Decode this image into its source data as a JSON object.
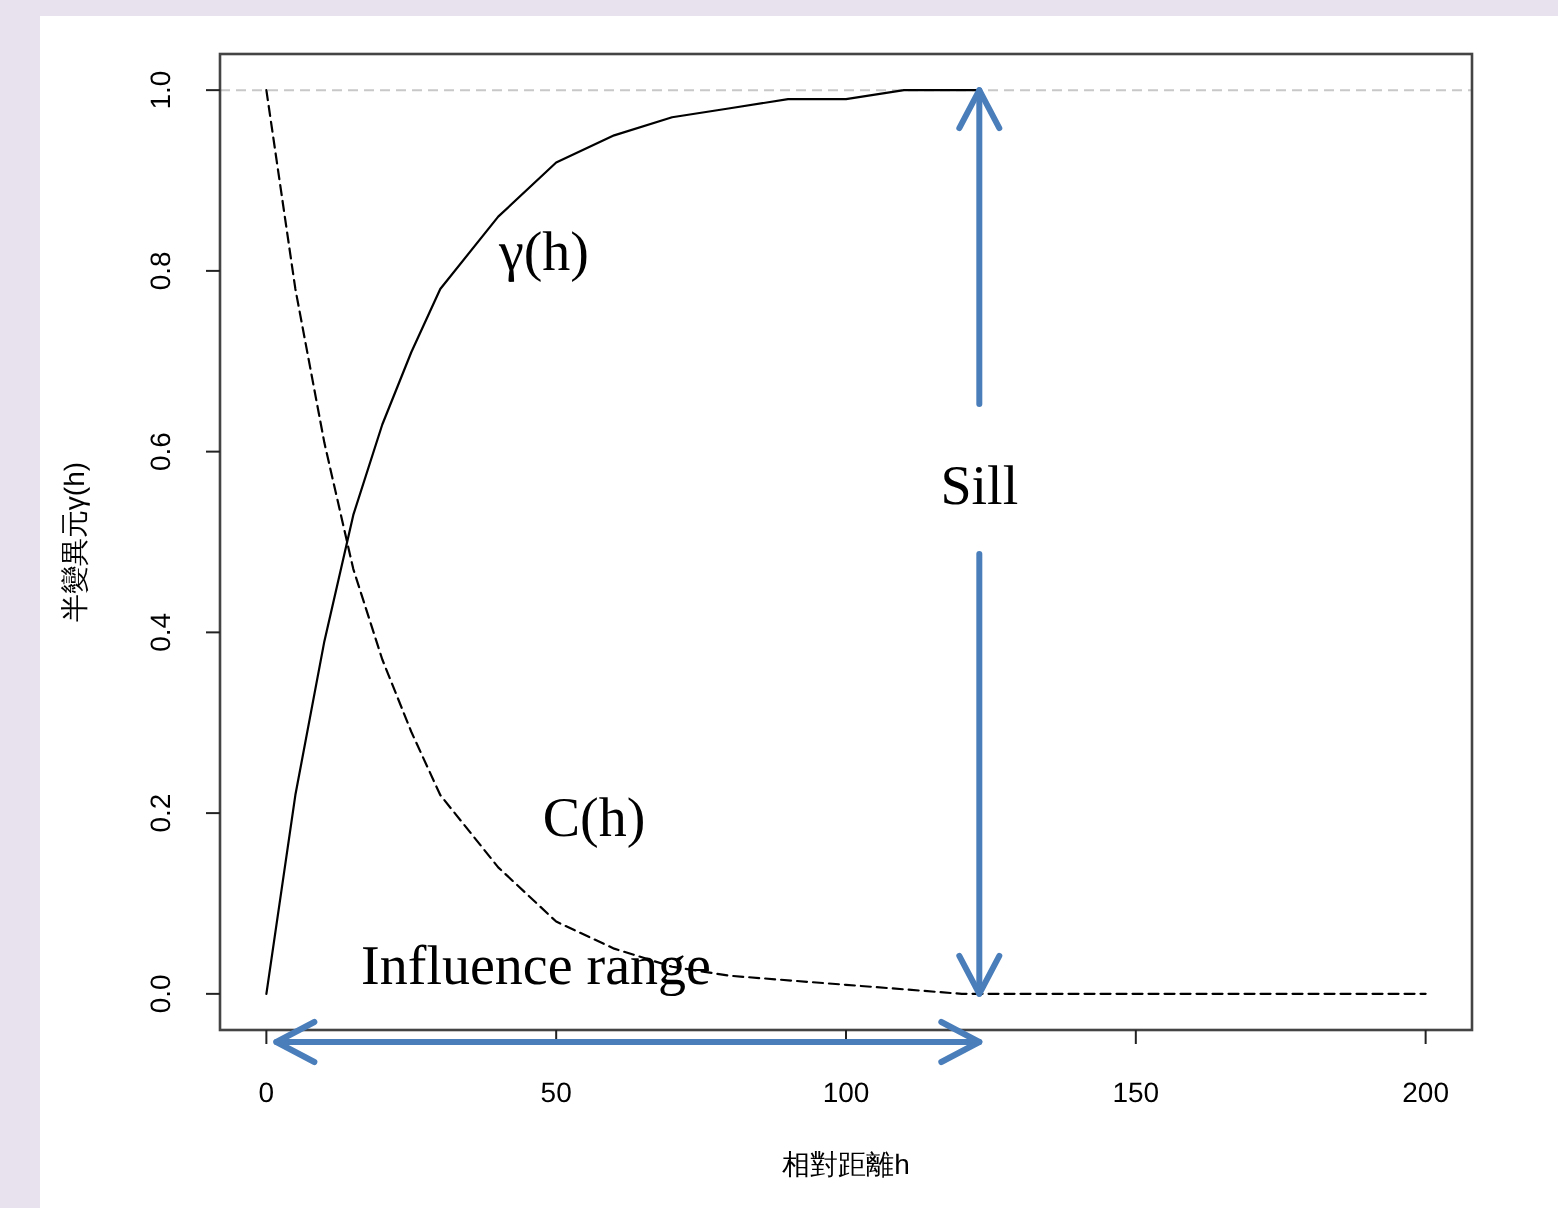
{
  "chart_data": {
    "type": "line",
    "xlabel": "相對距離h",
    "ylabel": "半變異元γ(h)",
    "xlim": [
      -8,
      208
    ],
    "ylim": [
      -0.04,
      1.04
    ],
    "xticks": [
      0,
      50,
      100,
      150,
      200
    ],
    "yticks": [
      {
        "value": 0,
        "label": "0.0"
      },
      {
        "value": 0.2,
        "label": "0.2"
      },
      {
        "value": 0.4,
        "label": "0.4"
      },
      {
        "value": 0.6,
        "label": "0.6"
      },
      {
        "value": 0.8,
        "label": "0.8"
      },
      {
        "value": 1,
        "label": "1.0"
      }
    ],
    "grid": false,
    "series": [
      {
        "name": "γ(h)",
        "color": "#000000",
        "line_style": "solid",
        "x": [
          0,
          5,
          10,
          15,
          20,
          25,
          30,
          40,
          50,
          60,
          70,
          80,
          90,
          100,
          110,
          123
        ],
        "values": [
          0,
          0.22,
          0.39,
          0.53,
          0.63,
          0.71,
          0.78,
          0.86,
          0.92,
          0.95,
          0.97,
          0.98,
          0.99,
          0.99,
          1.0,
          1.0
        ]
      },
      {
        "name": "C(h)",
        "color": "#000000",
        "line_style": "dashed",
        "x": [
          0,
          5,
          10,
          15,
          20,
          25,
          30,
          40,
          50,
          60,
          70,
          80,
          100,
          120,
          150,
          200
        ],
        "values": [
          1,
          0.78,
          0.61,
          0.47,
          0.37,
          0.29,
          0.22,
          0.14,
          0.08,
          0.05,
          0.03,
          0.02,
          0.01,
          0,
          0,
          0
        ]
      }
    ],
    "ref_lines": [
      {
        "axis": "y",
        "value": 1,
        "color": "#c8c8c8",
        "line_style": "dashed"
      }
    ],
    "annotations": [
      {
        "text": "Sill",
        "x": 123,
        "y": 1
      },
      "Influence range"
    ]
  }
}
